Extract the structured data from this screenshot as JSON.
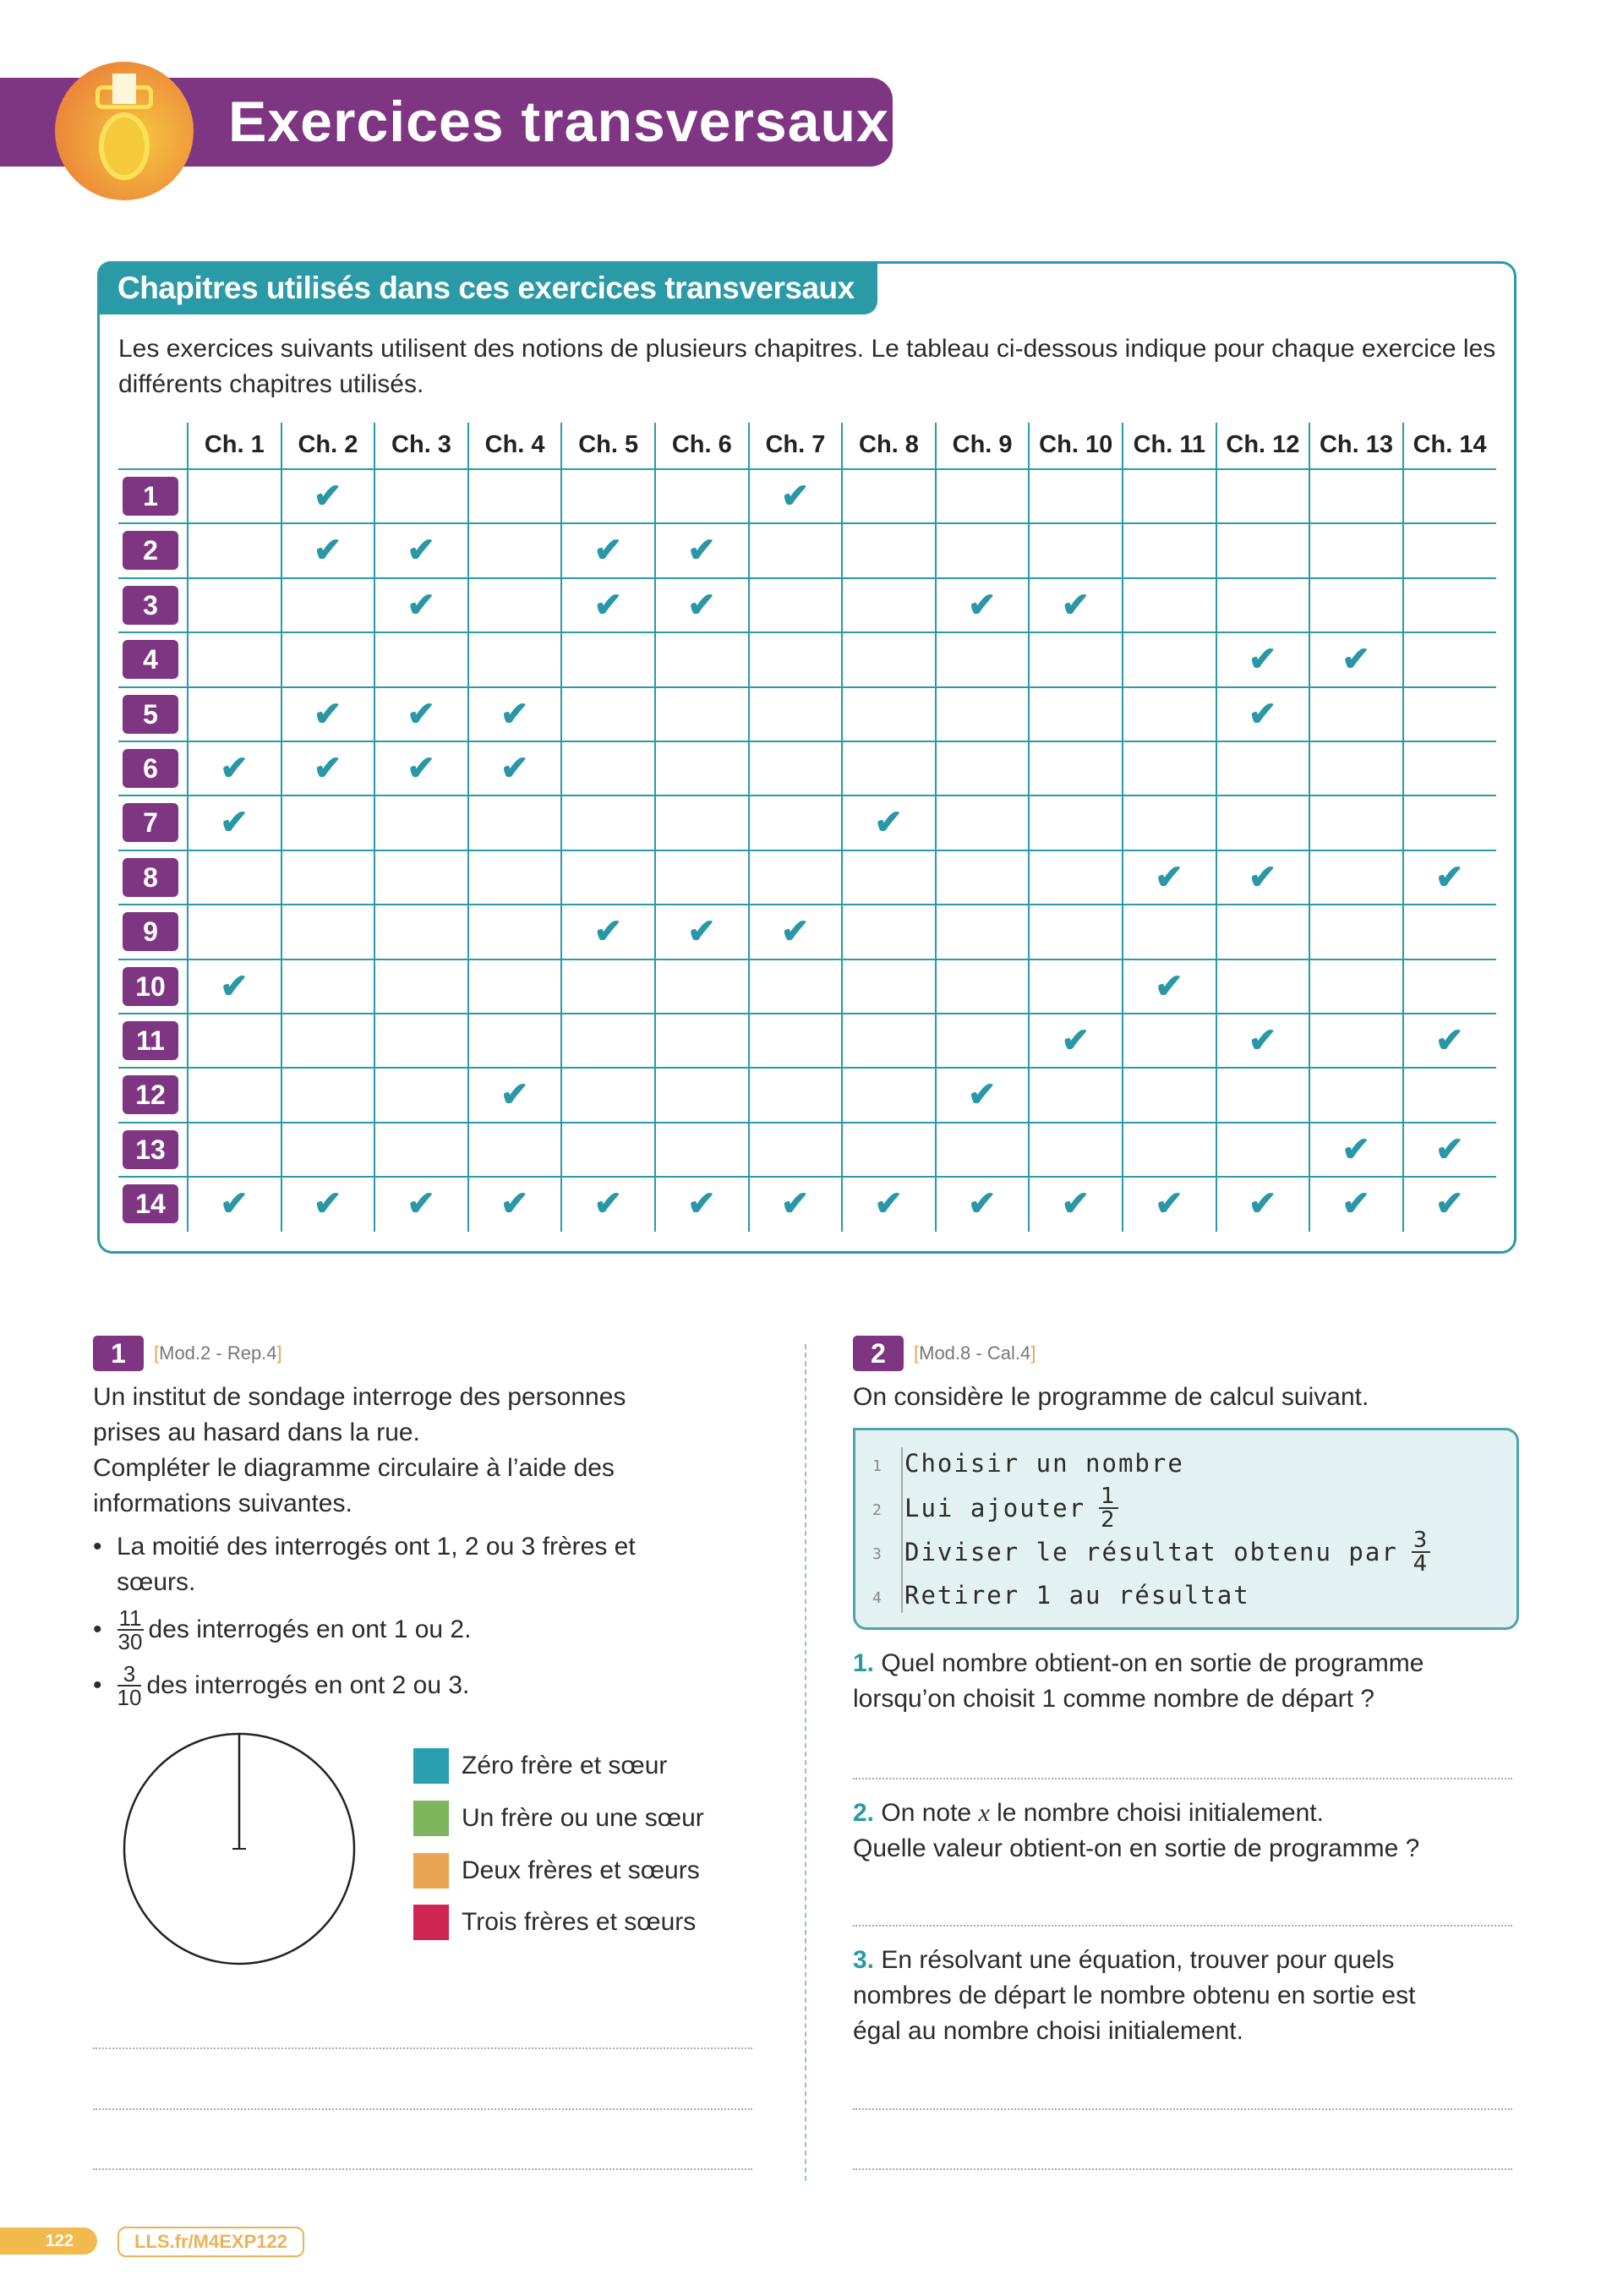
{
  "header": {
    "title": "Exercices transversaux",
    "icon": "medal-icon"
  },
  "chapters_box": {
    "title": "Chapitres utilisés dans ces exercices transversaux",
    "intro": "Les exercices suivants utilisent des notions de plusieurs chapitres. Le tableau ci-dessous indique pour chaque exercice les différents chapitres utilisés.",
    "columns": [
      "Ch. 1",
      "Ch. 2",
      "Ch. 3",
      "Ch. 4",
      "Ch. 5",
      "Ch. 6",
      "Ch. 7",
      "Ch. 8",
      "Ch. 9",
      "Ch. 10",
      "Ch. 11",
      "Ch. 12",
      "Ch. 13",
      "Ch. 14"
    ],
    "check_symbol": "✔",
    "rows": [
      {
        "exercise": "1",
        "chapters": [
          2,
          7
        ]
      },
      {
        "exercise": "2",
        "chapters": [
          2,
          3,
          5,
          6
        ]
      },
      {
        "exercise": "3",
        "chapters": [
          3,
          5,
          6,
          9,
          10
        ]
      },
      {
        "exercise": "4",
        "chapters": [
          12,
          13
        ]
      },
      {
        "exercise": "5",
        "chapters": [
          2,
          3,
          4,
          12
        ]
      },
      {
        "exercise": "6",
        "chapters": [
          1,
          2,
          3,
          4
        ]
      },
      {
        "exercise": "7",
        "chapters": [
          1,
          8
        ]
      },
      {
        "exercise": "8",
        "chapters": [
          11,
          12,
          14
        ]
      },
      {
        "exercise": "9",
        "chapters": [
          5,
          6,
          7
        ]
      },
      {
        "exercise": "10",
        "chapters": [
          1,
          11
        ]
      },
      {
        "exercise": "11",
        "chapters": [
          10,
          12,
          14
        ]
      },
      {
        "exercise": "12",
        "chapters": [
          4,
          9
        ]
      },
      {
        "exercise": "13",
        "chapters": [
          13,
          14
        ]
      },
      {
        "exercise": "14",
        "chapters": [
          1,
          2,
          3,
          4,
          5,
          6,
          7,
          8,
          9,
          10,
          11,
          12,
          13,
          14
        ]
      }
    ],
    "colors": {
      "accent": "#2a9aa7",
      "badge": "#7e3582"
    }
  },
  "ex1": {
    "number": "1",
    "ref": "Mod.2 - Rep.4",
    "lines": [
      "Un institut de sondage interroge des personnes",
      "prises au hasard dans la rue.",
      "Compléter le diagramme circulaire à l’aide des",
      "informations suivantes."
    ],
    "bullet1": [
      "La moitié des interrogés ont 1, 2 ou 3 frères et",
      "sœurs."
    ],
    "bullet2": {
      "num": "11",
      "den": "30",
      "text": "des interrogés en ont 1 ou 2."
    },
    "bullet3": {
      "num": "3",
      "den": "10",
      "text": "des interrogés en ont 2 ou 3."
    },
    "legend": [
      {
        "label": "Zéro frère et sœur",
        "color": "#2a9fb0"
      },
      {
        "label": "Un frère ou une sœur",
        "color": "#7cb55c"
      },
      {
        "label": "Deux frères et sœurs",
        "color": "#eba452"
      },
      {
        "label": "Trois frères et sœurs",
        "color": "#cf2553"
      }
    ]
  },
  "ex2": {
    "number": "2",
    "ref": "Mod.8 - Cal.4",
    "intro": "On considère le programme de calcul suivant.",
    "code": [
      {
        "n": "1",
        "text": "Choisir un nombre"
      },
      {
        "n": "2",
        "text": "Lui ajouter",
        "num": "1",
        "den": "2"
      },
      {
        "n": "3",
        "text": "Diviser le résultat obtenu par",
        "num": "3",
        "den": "4"
      },
      {
        "n": "4",
        "text": "Retirer 1 au résultat"
      }
    ],
    "q1": {
      "n": "1.",
      "lines": [
        "Quel nombre obtient-on en sortie de programme",
        "lorsqu’on choisit 1 comme nombre de départ ?"
      ]
    },
    "q2": {
      "n": "2.",
      "line1_a": "On note ",
      "var": "x",
      "line1_b": " le nombre choisi initialement.",
      "line2": "Quelle valeur obtient-on en sortie de programme ?"
    },
    "q3": {
      "n": "3.",
      "lines": [
        "En résolvant une équation, trouver pour quels",
        "nombres de départ le nombre obtenu en sortie est",
        "égal au nombre choisi initialement."
      ]
    }
  },
  "footer": {
    "page": "122",
    "link": "LLS.fr/M4EXP122"
  }
}
